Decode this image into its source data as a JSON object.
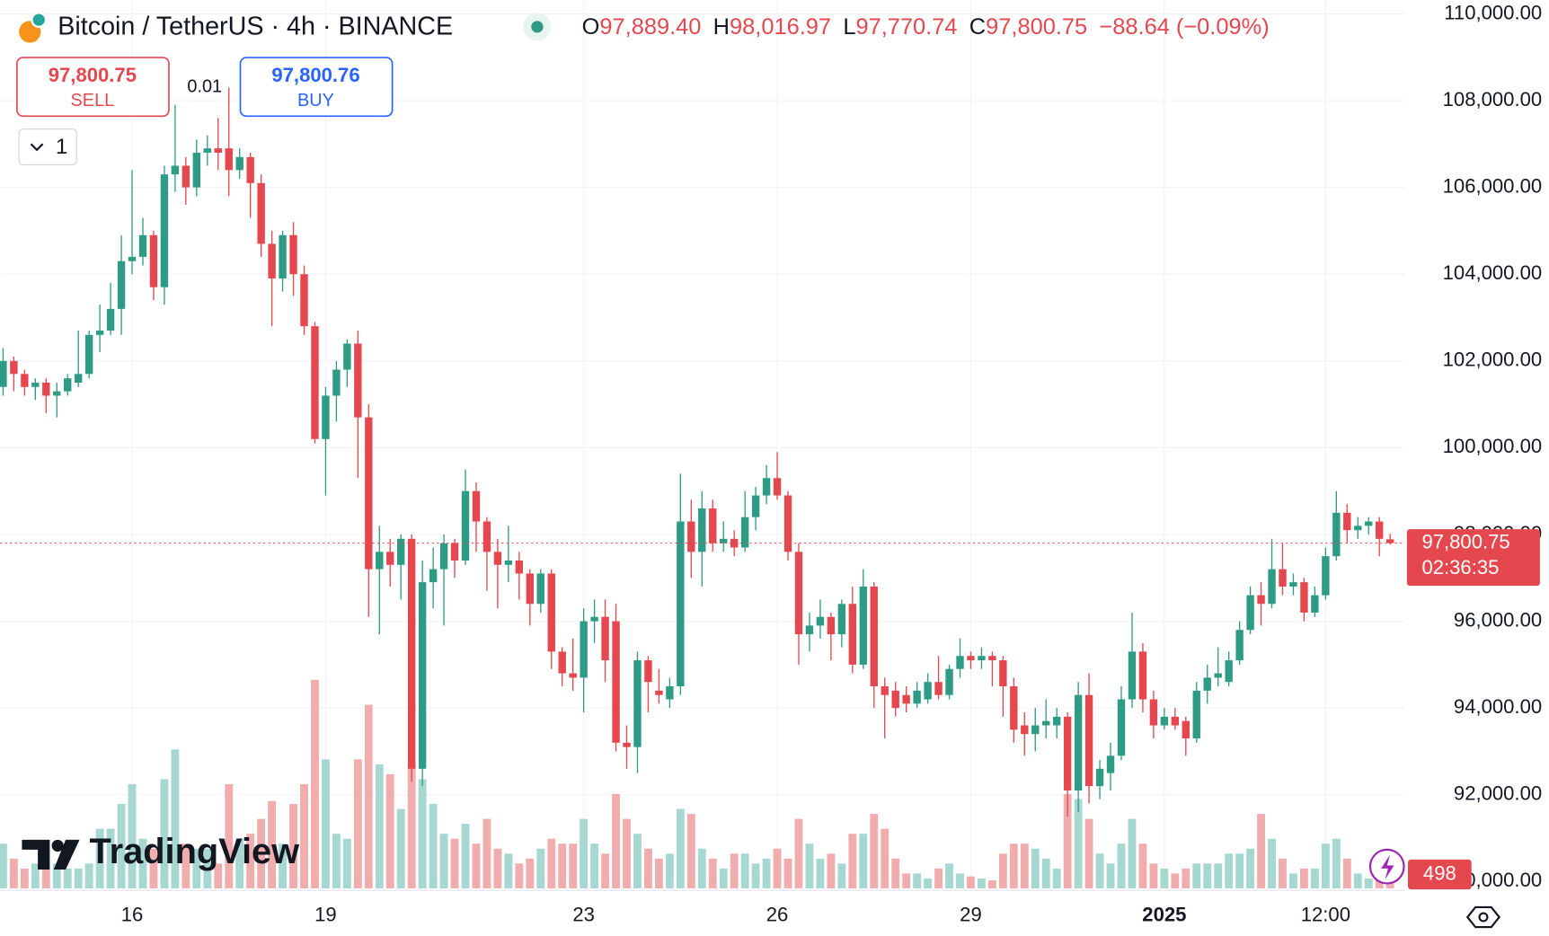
{
  "chart_data": {
    "type": "candlestick",
    "title": "Bitcoin / TetherUS · 4h · BINANCE",
    "ohlc_legend": [
      {
        "key": "O",
        "value": "97,889.40"
      },
      {
        "key": "H",
        "value": "98,016.97"
      },
      {
        "key": "L",
        "value": "97,770.74"
      },
      {
        "key": "C",
        "value": "97,800.75"
      }
    ],
    "change": "−88.64 (−0.09%)",
    "last_price_label": "97,800.75",
    "countdown": "02:36:35",
    "up_color": "#2e9c84",
    "down_color": "#e5474f",
    "volume_up_color": "#a6d7d0",
    "volume_down_color": "#f1adae",
    "grid": true,
    "ylim": [
      89843,
      110320
    ],
    "yticks": [
      {
        "value": 90000,
        "label": "90,000.00"
      },
      {
        "value": 92000,
        "label": "92,000.00"
      },
      {
        "value": 94000,
        "label": "94,000.00"
      },
      {
        "value": 96000,
        "label": "96,000.00"
      },
      {
        "value": 98000,
        "label": "98,000.00"
      },
      {
        "value": 100000,
        "label": "100,000.00"
      },
      {
        "value": 102000,
        "label": "102,000.00"
      },
      {
        "value": 104000,
        "label": "104,000.00"
      },
      {
        "value": 106000,
        "label": "106,000.00"
      },
      {
        "value": 108000,
        "label": "108,000.00"
      },
      {
        "value": 110000,
        "label": "110,000.00"
      }
    ],
    "categories": [
      null,
      null,
      null,
      null,
      null,
      null,
      null,
      null,
      null,
      null,
      null,
      null,
      "16",
      null,
      null,
      null,
      null,
      null,
      null,
      null,
      null,
      null,
      null,
      null,
      null,
      null,
      null,
      null,
      null,
      null,
      "19",
      null,
      null,
      null,
      null,
      null,
      null,
      null,
      null,
      null,
      null,
      null,
      null,
      null,
      null,
      null,
      null,
      null,
      null,
      null,
      null,
      null,
      null,
      null,
      "23",
      null,
      null,
      null,
      null,
      null,
      null,
      null,
      null,
      null,
      null,
      null,
      null,
      null,
      null,
      null,
      null,
      null,
      "26",
      null,
      null,
      null,
      null,
      null,
      null,
      null,
      null,
      null,
      null,
      null,
      null,
      null,
      null,
      null,
      null,
      null,
      "29",
      null,
      null,
      null,
      null,
      null,
      null,
      null,
      null,
      null,
      null,
      null,
      null,
      null,
      null,
      null,
      null,
      null,
      "2025",
      null,
      null,
      null,
      null,
      null,
      null,
      null,
      null,
      null,
      null,
      null,
      null,
      null,
      null,
      "12:00",
      null,
      null,
      null,
      null,
      null,
      null
    ],
    "open": [
      101400,
      102000,
      101700,
      101400,
      101500,
      101200,
      101300,
      101500,
      101700,
      102600,
      102700,
      103200,
      104300,
      104400,
      104900,
      103700,
      106300,
      106500,
      106000,
      106800,
      106900,
      106900,
      106400,
      106700,
      106100,
      104700,
      103900,
      104900,
      104000,
      102800,
      100200,
      101200,
      101800,
      102400,
      100700,
      97200,
      97600,
      97300,
      97900,
      92600,
      96900,
      97200,
      97800,
      97400,
      99000,
      98300,
      97600,
      97300,
      97400,
      97100,
      96400,
      97100,
      95300,
      94800,
      94700,
      96000,
      96100,
      96000,
      93200,
      93100,
      95100,
      94400,
      94200,
      94500,
      98300,
      97600,
      98600,
      97800,
      97900,
      97700,
      98400,
      98900,
      99300,
      98900,
      97600,
      95700,
      95900,
      96100,
      95700,
      96400,
      95000,
      96800,
      94500,
      94400,
      94300,
      94100,
      94200,
      94600,
      94300,
      94900,
      95200,
      95100,
      95200,
      95100,
      94500,
      93600,
      93400,
      93600,
      93600,
      93800,
      92100,
      94300,
      92200,
      92500,
      92900,
      94200,
      95300,
      94200,
      93600,
      93800,
      93700,
      93300,
      94400,
      94700,
      94600,
      95100,
      95800,
      96600,
      96400,
      97200,
      96800,
      96900,
      96200,
      96600,
      97500,
      98500,
      98100,
      98200,
      98300,
      97889.4
    ],
    "close": [
      102000,
      101700,
      101400,
      101500,
      101200,
      101300,
      101600,
      101700,
      102600,
      102700,
      103200,
      104300,
      104400,
      104900,
      103700,
      106300,
      106500,
      106000,
      106800,
      106900,
      106800,
      106400,
      106700,
      106100,
      104700,
      103900,
      104900,
      104000,
      102800,
      100200,
      101200,
      101800,
      102400,
      100700,
      97200,
      97600,
      97300,
      97900,
      92600,
      96900,
      97200,
      97800,
      97400,
      99000,
      98300,
      97600,
      97300,
      97400,
      97100,
      96400,
      97100,
      95300,
      94800,
      94700,
      96000,
      96100,
      95100,
      93200,
      93100,
      95100,
      94600,
      94300,
      94500,
      98300,
      97600,
      98600,
      97800,
      97900,
      97700,
      98400,
      98900,
      99300,
      98900,
      97600,
      95700,
      95900,
      96100,
      95700,
      96400,
      95000,
      96800,
      94500,
      94300,
      94000,
      94100,
      94400,
      94600,
      94300,
      94900,
      95200,
      95100,
      95200,
      95100,
      94500,
      93500,
      93400,
      93600,
      93700,
      93800,
      92100,
      94300,
      92200,
      92600,
      92900,
      94200,
      95300,
      94200,
      93600,
      93800,
      93600,
      93300,
      94400,
      94700,
      94800,
      95100,
      95800,
      96600,
      96400,
      97200,
      96800,
      96900,
      96200,
      96600,
      97500,
      98500,
      98100,
      98200,
      98300,
      97900,
      97800.75
    ],
    "high": [
      102300,
      102100,
      101800,
      101600,
      101600,
      101500,
      101700,
      102700,
      102700,
      103300,
      103800,
      104900,
      106400,
      105300,
      105000,
      106500,
      107900,
      106700,
      107100,
      107200,
      107600,
      108300,
      106900,
      106800,
      106300,
      105000,
      105000,
      105200,
      104200,
      102900,
      101400,
      102000,
      102500,
      102700,
      101000,
      98200,
      97900,
      98000,
      98000,
      97400,
      97700,
      98000,
      97900,
      99500,
      99200,
      98400,
      97900,
      98200,
      97600,
      97200,
      97200,
      97200,
      95400,
      95600,
      96300,
      96500,
      96500,
      96400,
      93600,
      95300,
      95200,
      94900,
      94700,
      99400,
      98800,
      99000,
      98800,
      98300,
      98100,
      99000,
      99100,
      99600,
      99900,
      99000,
      97800,
      96200,
      96500,
      96200,
      96500,
      96800,
      97200,
      96900,
      94700,
      94600,
      94500,
      94600,
      94800,
      95200,
      95000,
      95600,
      95300,
      95400,
      95300,
      95200,
      94700,
      93900,
      94000,
      94200,
      94000,
      93900,
      94600,
      94800,
      92800,
      93200,
      94500,
      96200,
      95500,
      94400,
      94000,
      94000,
      93800,
      94600,
      95000,
      95400,
      95300,
      96000,
      96800,
      96900,
      97900,
      97800,
      97100,
      97000,
      96800,
      97700,
      99000,
      98700,
      98400,
      98400,
      98400,
      98016.97
    ],
    "low": [
      101200,
      101300,
      101200,
      101100,
      100800,
      100700,
      101200,
      101400,
      101600,
      102200,
      102600,
      102600,
      104000,
      104200,
      103400,
      103300,
      105900,
      105600,
      105800,
      106500,
      106400,
      105800,
      106200,
      105300,
      104400,
      102800,
      103600,
      103500,
      102600,
      100100,
      98900,
      100600,
      101400,
      99300,
      96100,
      95700,
      96800,
      96500,
      92300,
      92200,
      96300,
      95900,
      97000,
      97300,
      97600,
      96700,
      96300,
      96900,
      96500,
      95900,
      96200,
      94900,
      94500,
      94400,
      93900,
      95500,
      94600,
      93000,
      92600,
      92500,
      93900,
      94100,
      94000,
      94300,
      97000,
      96800,
      97600,
      97600,
      97500,
      97600,
      98100,
      98700,
      98800,
      97400,
      95000,
      95300,
      95600,
      95100,
      95400,
      94800,
      94900,
      94000,
      93300,
      93800,
      93900,
      94000,
      94100,
      94200,
      94200,
      94700,
      94900,
      94900,
      94500,
      93800,
      93200,
      92900,
      93000,
      93300,
      93300,
      91500,
      91600,
      91800,
      91900,
      92100,
      92800,
      94000,
      93900,
      93300,
      93500,
      93500,
      92900,
      93200,
      94100,
      94500,
      94500,
      95000,
      95700,
      95900,
      96300,
      96600,
      96600,
      96000,
      96100,
      96500,
      97400,
      97800,
      97900,
      98000,
      97500,
      97770.74
    ],
    "volume": [
      4500,
      3000,
      2000,
      2500,
      2000,
      2500,
      2000,
      2000,
      2500,
      6000,
      6000,
      8500,
      10500,
      5000,
      4000,
      11000,
      14000,
      4500,
      4000,
      4000,
      2500,
      10500,
      5000,
      5500,
      7000,
      8800,
      4500,
      8500,
      10500,
      21000,
      13000,
      5500,
      5000,
      13000,
      18500,
      12500,
      11500,
      8000,
      12500,
      11000,
      8500,
      5500,
      5000,
      6500,
      4500,
      7000,
      4000,
      3500,
      2500,
      3000,
      4000,
      5000,
      4500,
      4500,
      7000,
      4500,
      3500,
      9500,
      7000,
      5500,
      4000,
      3000,
      3500,
      8000,
      7500,
      4000,
      3000,
      2000,
      3500,
      3500,
      2500,
      3000,
      4000,
      3000,
      7000,
      4500,
      3000,
      3500,
      2500,
      5500,
      5500,
      7500,
      6000,
      3000,
      1500,
      1500,
      1000,
      2000,
      2500,
      1500,
      1200,
      1000,
      800,
      3500,
      4500,
      4500,
      4000,
      3000,
      2000,
      9500,
      9000,
      7000,
      3500,
      2500,
      4500,
      7000,
      4500,
      2500,
      2000,
      1500,
      2000,
      2500,
      2500,
      2500,
      3500,
      3500,
      4000,
      7500,
      5000,
      3000,
      1500,
      2000,
      2000,
      4500,
      5000,
      3000,
      1500,
      1000,
      1000,
      498
    ]
  },
  "trade_panel": {
    "sell_price": "97,800.75",
    "sell": "SELL",
    "quantity": "0.01",
    "buy_price": "97,800.76",
    "buy": "BUY",
    "interval_count": "1"
  },
  "logo": "TradingView"
}
